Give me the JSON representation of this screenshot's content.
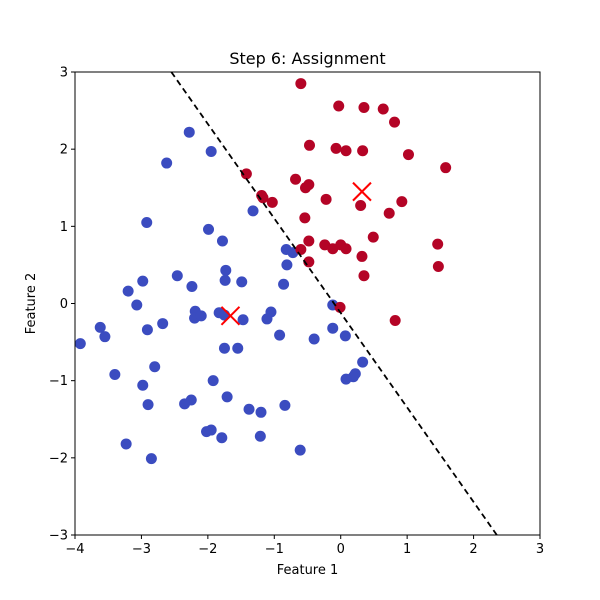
{
  "chart_data": {
    "type": "scatter",
    "title": "Step 6: Assignment",
    "xlabel": "Feature 1",
    "ylabel": "Feature 2",
    "xlim": [
      -4,
      3
    ],
    "ylim": [
      -3,
      3
    ],
    "xticks": [
      "−4",
      "−3",
      "−2",
      "−1",
      "0",
      "1",
      "2",
      "3"
    ],
    "yticks": [
      "−3",
      "−2",
      "−1",
      "0",
      "1",
      "2",
      "3"
    ],
    "grid": false,
    "legend": "none",
    "colors": {
      "cluster_0": "#3b4cc0",
      "cluster_1": "#b40426",
      "centroid": "#ff0000",
      "boundary": "#000000"
    },
    "series": [
      {
        "color": "#3b4cc0",
        "points": [
          [
            -2.28,
            2.22
          ],
          [
            -1.95,
            1.97
          ],
          [
            -2.62,
            1.82
          ],
          [
            -2.92,
            1.05
          ],
          [
            -1.99,
            0.96
          ],
          [
            -1.78,
            0.81
          ],
          [
            -1.32,
            1.2
          ],
          [
            -0.82,
            0.7
          ],
          [
            -0.72,
            0.66
          ],
          [
            -0.81,
            0.5
          ],
          [
            -0.86,
            0.25
          ],
          [
            -2.46,
            0.36
          ],
          [
            -2.24,
            0.22
          ],
          [
            -1.73,
            0.43
          ],
          [
            -1.74,
            0.3
          ],
          [
            -1.49,
            0.28
          ],
          [
            -2.98,
            0.29
          ],
          [
            -3.2,
            0.16
          ],
          [
            -3.07,
            -0.02
          ],
          [
            -2.19,
            -0.1
          ],
          [
            -2.2,
            -0.19
          ],
          [
            -2.1,
            -0.16
          ],
          [
            -1.83,
            -0.12
          ],
          [
            -1.75,
            -0.15
          ],
          [
            -1.47,
            -0.21
          ],
          [
            -1.05,
            -0.11
          ],
          [
            -1.11,
            -0.2
          ],
          [
            -2.68,
            -0.26
          ],
          [
            -2.91,
            -0.34
          ],
          [
            -3.62,
            -0.31
          ],
          [
            -3.55,
            -0.43
          ],
          [
            -3.92,
            -0.52
          ],
          [
            -0.92,
            -0.41
          ],
          [
            -0.4,
            -0.46
          ],
          [
            -0.12,
            -0.02
          ],
          [
            -0.12,
            -0.32
          ],
          [
            0.07,
            -0.42
          ],
          [
            -1.75,
            -0.58
          ],
          [
            -1.55,
            -0.58
          ],
          [
            -2.8,
            -0.82
          ],
          [
            -3.4,
            -0.92
          ],
          [
            -1.92,
            -1.0
          ],
          [
            0.33,
            -0.76
          ],
          [
            0.22,
            -0.91
          ],
          [
            0.19,
            -0.95
          ],
          [
            0.08,
            -0.98
          ],
          [
            -2.98,
            -1.06
          ],
          [
            -1.71,
            -1.21
          ],
          [
            -2.25,
            -1.25
          ],
          [
            -2.35,
            -1.3
          ],
          [
            -2.9,
            -1.31
          ],
          [
            -0.84,
            -1.32
          ],
          [
            -1.38,
            -1.37
          ],
          [
            -1.2,
            -1.41
          ],
          [
            -2.02,
            -1.66
          ],
          [
            -1.95,
            -1.64
          ],
          [
            -1.79,
            -1.74
          ],
          [
            -1.21,
            -1.72
          ],
          [
            -3.23,
            -1.82
          ],
          [
            -0.61,
            -1.9
          ],
          [
            -2.85,
            -2.01
          ]
        ]
      },
      {
        "color": "#b40426",
        "points": [
          [
            -0.6,
            2.85
          ],
          [
            -0.03,
            2.56
          ],
          [
            0.35,
            2.54
          ],
          [
            0.64,
            2.52
          ],
          [
            0.81,
            2.35
          ],
          [
            -0.47,
            2.05
          ],
          [
            -0.07,
            2.01
          ],
          [
            0.08,
            1.98
          ],
          [
            0.33,
            1.98
          ],
          [
            1.02,
            1.93
          ],
          [
            1.58,
            1.76
          ],
          [
            -1.42,
            1.68
          ],
          [
            -0.68,
            1.61
          ],
          [
            -0.48,
            1.54
          ],
          [
            -0.53,
            1.5
          ],
          [
            -1.19,
            1.4
          ],
          [
            -1.17,
            1.37
          ],
          [
            -1.03,
            1.31
          ],
          [
            -0.22,
            1.35
          ],
          [
            0.3,
            1.27
          ],
          [
            0.92,
            1.32
          ],
          [
            0.73,
            1.17
          ],
          [
            -0.54,
            1.11
          ],
          [
            0.49,
            0.86
          ],
          [
            -0.48,
            0.81
          ],
          [
            -0.24,
            0.76
          ],
          [
            0.0,
            0.76
          ],
          [
            -0.12,
            0.71
          ],
          [
            0.08,
            0.71
          ],
          [
            -0.6,
            0.7
          ],
          [
            1.46,
            0.77
          ],
          [
            0.32,
            0.61
          ],
          [
            -0.48,
            0.54
          ],
          [
            1.47,
            0.48
          ],
          [
            0.35,
            0.36
          ],
          [
            -0.01,
            -0.05
          ],
          [
            0.82,
            -0.22
          ]
        ]
      }
    ],
    "centroids": [
      [
        -1.66,
        -0.16
      ],
      [
        0.32,
        1.45
      ]
    ],
    "boundary": {
      "style": "dashed",
      "from": [
        -2.55,
        3.0
      ],
      "to": [
        2.35,
        -3.0
      ]
    }
  }
}
